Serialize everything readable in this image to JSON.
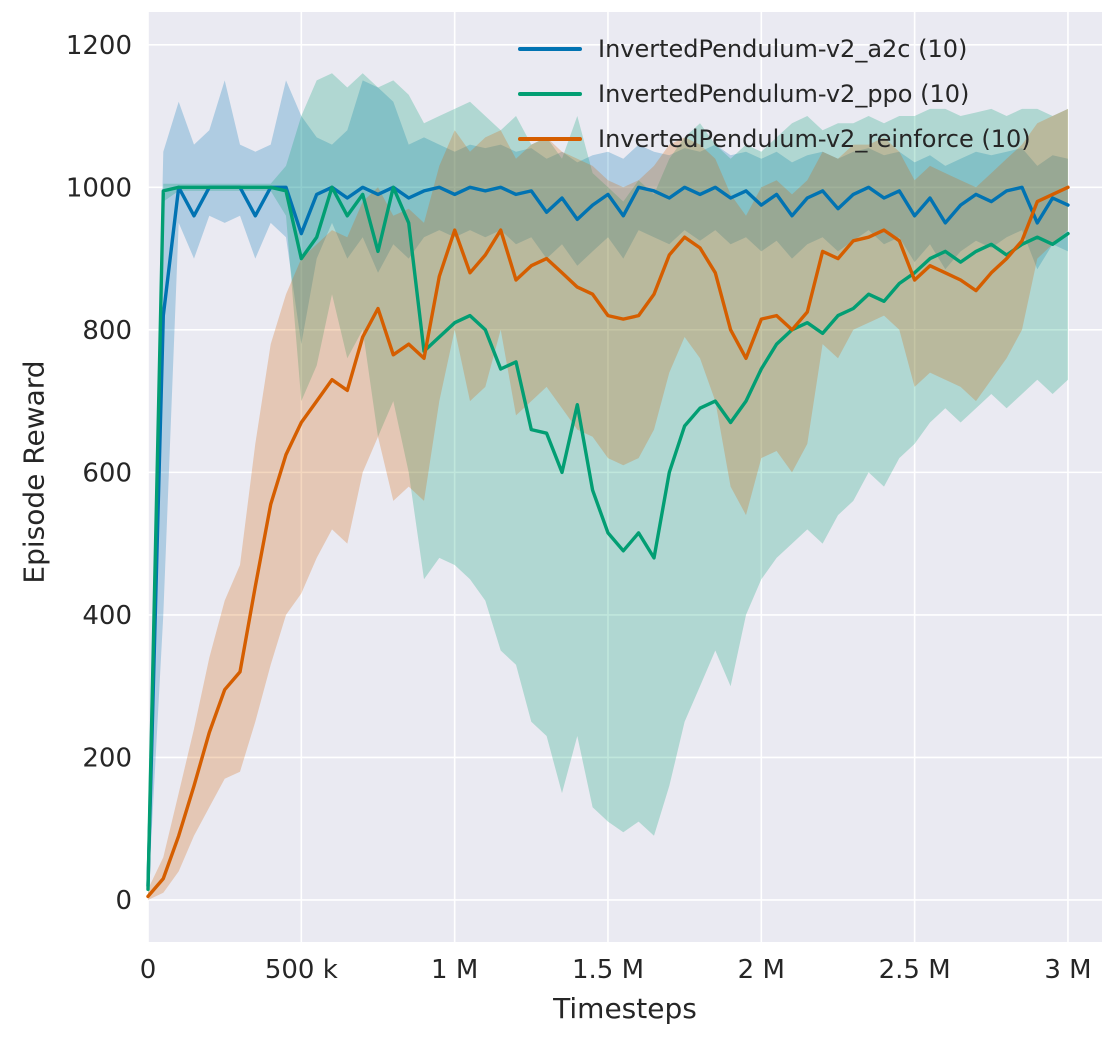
{
  "chart_data": {
    "type": "line",
    "title": "",
    "xlabel": "Timesteps",
    "ylabel": "Episode Reward",
    "x_unit": "thousands of timesteps",
    "point_format": "[x_thousand_timesteps, mean, band_low, band_high]",
    "xlim": [
      0,
      3111
    ],
    "ylim": [
      -59,
      1246
    ],
    "grid": true,
    "legend_position": "upper center",
    "background": "#eaeaf2",
    "grid_color": "#ffffff",
    "text_color": "#262626",
    "band_opacity": 0.25,
    "xticks": {
      "values": [
        0,
        500,
        1000,
        1500,
        2000,
        2500,
        3000
      ],
      "labels": [
        "0",
        "500 k",
        "1 M",
        "1.5 M",
        "2 M",
        "2.5 M",
        "3 M"
      ]
    },
    "yticks": {
      "values": [
        0,
        200,
        400,
        600,
        800,
        1000,
        1200
      ],
      "labels": [
        "0",
        "200",
        "400",
        "600",
        "800",
        "1000",
        "1200"
      ]
    },
    "series": [
      {
        "name": "InvertedPendulum-v2_a2c (10)",
        "color": "#0173b2",
        "points": [
          [
            0,
            20,
            0,
            120
          ],
          [
            50,
            820,
            400,
            1050
          ],
          [
            100,
            1000,
            950,
            1120
          ],
          [
            150,
            960,
            900,
            1060
          ],
          [
            200,
            1000,
            960,
            1080
          ],
          [
            250,
            1000,
            950,
            1150
          ],
          [
            300,
            1000,
            960,
            1060
          ],
          [
            350,
            960,
            900,
            1050
          ],
          [
            400,
            1000,
            950,
            1060
          ],
          [
            450,
            1000,
            930,
            1150
          ],
          [
            500,
            935,
            780,
            1100
          ],
          [
            550,
            990,
            900,
            1070
          ],
          [
            600,
            1000,
            950,
            1060
          ],
          [
            650,
            985,
            900,
            1080
          ],
          [
            700,
            1000,
            930,
            1150
          ],
          [
            750,
            990,
            880,
            1140
          ],
          [
            800,
            1000,
            920,
            1120
          ],
          [
            850,
            985,
            900,
            1060
          ],
          [
            900,
            995,
            930,
            1070
          ],
          [
            950,
            1000,
            940,
            1060
          ],
          [
            1000,
            990,
            930,
            1050
          ],
          [
            1050,
            1000,
            940,
            1060
          ],
          [
            1100,
            995,
            930,
            1055
          ],
          [
            1150,
            1000,
            940,
            1060
          ],
          [
            1200,
            990,
            920,
            1050
          ],
          [
            1250,
            995,
            930,
            1055
          ],
          [
            1300,
            965,
            900,
            1040
          ],
          [
            1350,
            985,
            920,
            1050
          ],
          [
            1400,
            955,
            890,
            1035
          ],
          [
            1450,
            975,
            910,
            1045
          ],
          [
            1500,
            990,
            930,
            1050
          ],
          [
            1550,
            960,
            900,
            1040
          ],
          [
            1600,
            1000,
            940,
            1060
          ],
          [
            1650,
            995,
            930,
            1050
          ],
          [
            1700,
            985,
            920,
            1045
          ],
          [
            1750,
            1000,
            940,
            1055
          ],
          [
            1800,
            990,
            925,
            1050
          ],
          [
            1850,
            1000,
            940,
            1060
          ],
          [
            1900,
            985,
            920,
            1045
          ],
          [
            1950,
            995,
            930,
            1050
          ],
          [
            2000,
            975,
            910,
            1040
          ],
          [
            2050,
            990,
            925,
            1050
          ],
          [
            2100,
            960,
            900,
            1035
          ],
          [
            2150,
            985,
            920,
            1045
          ],
          [
            2200,
            995,
            930,
            1050
          ],
          [
            2250,
            970,
            910,
            1040
          ],
          [
            2300,
            990,
            925,
            1050
          ],
          [
            2350,
            1000,
            940,
            1055
          ],
          [
            2400,
            985,
            920,
            1045
          ],
          [
            2450,
            995,
            930,
            1050
          ],
          [
            2500,
            960,
            895,
            1035
          ],
          [
            2550,
            985,
            920,
            1045
          ],
          [
            2600,
            950,
            885,
            1030
          ],
          [
            2650,
            975,
            910,
            1040
          ],
          [
            2700,
            990,
            925,
            1050
          ],
          [
            2750,
            980,
            915,
            1045
          ],
          [
            2800,
            995,
            930,
            1050
          ],
          [
            2850,
            1000,
            940,
            1055
          ],
          [
            2900,
            950,
            885,
            1030
          ],
          [
            2950,
            985,
            920,
            1045
          ],
          [
            3000,
            975,
            910,
            1040
          ]
        ]
      },
      {
        "name": "InvertedPendulum-v2_ppo (10)",
        "color": "#029e73",
        "points": [
          [
            0,
            15,
            0,
            40
          ],
          [
            50,
            995,
            980,
            1005
          ],
          [
            100,
            1000,
            995,
            1005
          ],
          [
            150,
            1000,
            995,
            1005
          ],
          [
            200,
            1000,
            995,
            1005
          ],
          [
            250,
            1000,
            995,
            1005
          ],
          [
            300,
            1000,
            995,
            1005
          ],
          [
            350,
            1000,
            995,
            1005
          ],
          [
            400,
            1000,
            995,
            1005
          ],
          [
            450,
            995,
            960,
            1030
          ],
          [
            500,
            900,
            700,
            1100
          ],
          [
            550,
            930,
            750,
            1150
          ],
          [
            600,
            1000,
            850,
            1160
          ],
          [
            650,
            960,
            760,
            1140
          ],
          [
            700,
            990,
            800,
            1160
          ],
          [
            750,
            910,
            650,
            1140
          ],
          [
            800,
            1000,
            700,
            1150
          ],
          [
            850,
            950,
            600,
            1130
          ],
          [
            900,
            770,
            450,
            1090
          ],
          [
            950,
            790,
            480,
            1100
          ],
          [
            1000,
            810,
            470,
            1110
          ],
          [
            1050,
            820,
            450,
            1120
          ],
          [
            1100,
            800,
            420,
            1100
          ],
          [
            1150,
            745,
            350,
            1080
          ],
          [
            1200,
            755,
            330,
            1100
          ],
          [
            1250,
            660,
            250,
            1060
          ],
          [
            1300,
            655,
            230,
            1070
          ],
          [
            1350,
            600,
            150,
            1040
          ],
          [
            1400,
            695,
            230,
            1100
          ],
          [
            1450,
            575,
            130,
            1020
          ],
          [
            1500,
            515,
            110,
            1000
          ],
          [
            1550,
            490,
            95,
            980
          ],
          [
            1600,
            515,
            110,
            1010
          ],
          [
            1650,
            480,
            90,
            990
          ],
          [
            1700,
            600,
            160,
            1040
          ],
          [
            1750,
            665,
            250,
            1070
          ],
          [
            1800,
            690,
            300,
            1090
          ],
          [
            1850,
            700,
            350,
            1060
          ],
          [
            1900,
            670,
            300,
            1040
          ],
          [
            1950,
            700,
            400,
            1060
          ],
          [
            2000,
            745,
            450,
            1050
          ],
          [
            2050,
            780,
            480,
            1070
          ],
          [
            2100,
            800,
            500,
            1090
          ],
          [
            2150,
            810,
            520,
            1100
          ],
          [
            2200,
            795,
            500,
            1080
          ],
          [
            2250,
            820,
            540,
            1090
          ],
          [
            2300,
            830,
            560,
            1090
          ],
          [
            2350,
            850,
            600,
            1100
          ],
          [
            2400,
            840,
            580,
            1090
          ],
          [
            2450,
            865,
            620,
            1100
          ],
          [
            2500,
            880,
            640,
            1100
          ],
          [
            2550,
            900,
            670,
            1110
          ],
          [
            2600,
            910,
            690,
            1110
          ],
          [
            2650,
            895,
            670,
            1100
          ],
          [
            2700,
            910,
            690,
            1105
          ],
          [
            2750,
            920,
            710,
            1110
          ],
          [
            2800,
            905,
            690,
            1100
          ],
          [
            2850,
            920,
            710,
            1110
          ],
          [
            2900,
            930,
            730,
            1110
          ],
          [
            2950,
            920,
            710,
            1100
          ],
          [
            3000,
            935,
            730,
            1110
          ]
        ]
      },
      {
        "name": "InvertedPendulum-v2_reinforce (10)",
        "color": "#d55e00",
        "points": [
          [
            0,
            5,
            0,
            15
          ],
          [
            50,
            30,
            10,
            60
          ],
          [
            100,
            90,
            40,
            150
          ],
          [
            150,
            160,
            90,
            240
          ],
          [
            200,
            235,
            130,
            340
          ],
          [
            250,
            295,
            170,
            420
          ],
          [
            300,
            320,
            180,
            470
          ],
          [
            350,
            440,
            250,
            640
          ],
          [
            400,
            555,
            330,
            780
          ],
          [
            450,
            625,
            400,
            850
          ],
          [
            500,
            670,
            430,
            900
          ],
          [
            550,
            700,
            480,
            920
          ],
          [
            600,
            730,
            520,
            940
          ],
          [
            650,
            715,
            500,
            930
          ],
          [
            700,
            790,
            600,
            980
          ],
          [
            750,
            830,
            650,
            1000
          ],
          [
            800,
            765,
            560,
            960
          ],
          [
            850,
            780,
            580,
            970
          ],
          [
            900,
            760,
            560,
            950
          ],
          [
            950,
            875,
            700,
            1030
          ],
          [
            1000,
            940,
            800,
            1080
          ],
          [
            1050,
            880,
            700,
            1050
          ],
          [
            1100,
            905,
            720,
            1070
          ],
          [
            1150,
            940,
            800,
            1080
          ],
          [
            1200,
            870,
            680,
            1040
          ],
          [
            1250,
            890,
            700,
            1060
          ],
          [
            1300,
            900,
            720,
            1070
          ],
          [
            1350,
            880,
            690,
            1050
          ],
          [
            1400,
            860,
            660,
            1040
          ],
          [
            1450,
            850,
            650,
            1030
          ],
          [
            1500,
            820,
            620,
            1010
          ],
          [
            1550,
            815,
            610,
            1000
          ],
          [
            1600,
            820,
            620,
            1010
          ],
          [
            1650,
            850,
            660,
            1030
          ],
          [
            1700,
            905,
            740,
            1060
          ],
          [
            1750,
            930,
            790,
            1070
          ],
          [
            1800,
            915,
            760,
            1060
          ],
          [
            1850,
            880,
            700,
            1040
          ],
          [
            1900,
            800,
            580,
            990
          ],
          [
            1950,
            760,
            540,
            960
          ],
          [
            2000,
            815,
            620,
            1000
          ],
          [
            2050,
            820,
            630,
            1010
          ],
          [
            2100,
            800,
            600,
            990
          ],
          [
            2150,
            825,
            640,
            1010
          ],
          [
            2200,
            910,
            780,
            1050
          ],
          [
            2250,
            900,
            760,
            1040
          ],
          [
            2300,
            925,
            800,
            1060
          ],
          [
            2350,
            930,
            810,
            1060
          ],
          [
            2400,
            940,
            820,
            1070
          ],
          [
            2450,
            925,
            800,
            1050
          ],
          [
            2500,
            870,
            720,
            1010
          ],
          [
            2550,
            890,
            740,
            1030
          ],
          [
            2600,
            880,
            730,
            1020
          ],
          [
            2650,
            870,
            720,
            1010
          ],
          [
            2700,
            855,
            700,
            1000
          ],
          [
            2750,
            880,
            730,
            1020
          ],
          [
            2800,
            900,
            760,
            1040
          ],
          [
            2850,
            925,
            800,
            1060
          ],
          [
            2900,
            980,
            900,
            1090
          ],
          [
            2950,
            990,
            920,
            1100
          ],
          [
            3000,
            1000,
            940,
            1110
          ]
        ]
      }
    ]
  }
}
